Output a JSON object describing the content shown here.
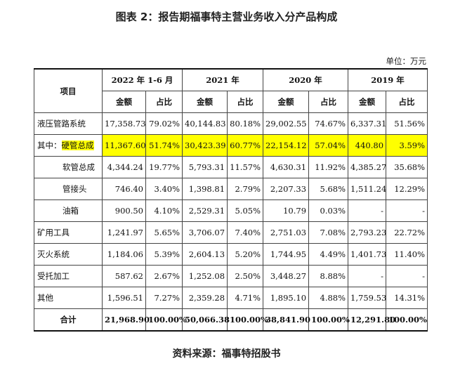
{
  "title": "图表 2：报告期福事特主营业务收入分产品构成",
  "unit": "单位：万元",
  "source": "资料来源：福事特招股书",
  "colors": {
    "highlight": "#ffff00"
  },
  "table": {
    "header_item": "项目",
    "years": [
      "2022 年 1-6 月",
      "2021 年",
      "2020 年",
      "2019 年"
    ],
    "subheaders": [
      "金额",
      "占比",
      "金额",
      "占比",
      "金额",
      "占比",
      "金额",
      "占比"
    ],
    "rows": [
      {
        "label": "液压管路系统",
        "cells": [
          "17,358.73",
          "79.02%",
          "40,144.83",
          "80.18%",
          "29,002.55",
          "74.67%",
          "6,337.31",
          "51.56%"
        ]
      },
      {
        "prefix": "其中：",
        "label": "硬管总成",
        "cells": [
          "11,367.60",
          "51.74%",
          "30,423.39",
          "60.77%",
          "22,154.12",
          "57.04%",
          "440.80",
          "3.59%"
        ]
      },
      {
        "label": "软管总成",
        "cells": [
          "4,344.24",
          "19.77%",
          "5,793.31",
          "11.57%",
          "4,630.31",
          "11.92%",
          "4,385.27",
          "35.68%"
        ]
      },
      {
        "label": "管接头",
        "cells": [
          "746.40",
          "3.40%",
          "1,398.81",
          "2.79%",
          "2,207.33",
          "5.68%",
          "1,511.24",
          "12.29%"
        ]
      },
      {
        "label": "油箱",
        "cells": [
          "900.50",
          "4.10%",
          "2,529.31",
          "5.05%",
          "10.79",
          "0.03%",
          "-",
          "-"
        ]
      },
      {
        "label": "矿用工具",
        "cells": [
          "1,241.97",
          "5.65%",
          "3,706.07",
          "7.40%",
          "2,751.03",
          "7.08%",
          "2,793.23",
          "22.72%"
        ]
      },
      {
        "label": "灭火系统",
        "cells": [
          "1,184.06",
          "5.39%",
          "2,604.13",
          "5.20%",
          "1,744.95",
          "4.49%",
          "1,401.73",
          "11.40%"
        ]
      },
      {
        "label": "受托加工",
        "cells": [
          "587.62",
          "2.67%",
          "1,252.08",
          "2.50%",
          "3,448.27",
          "8.88%",
          "-",
          "-"
        ]
      },
      {
        "label": "其他",
        "cells": [
          "1,596.51",
          "7.27%",
          "2,359.28",
          "4.71%",
          "1,895.10",
          "4.88%",
          "1,759.53",
          "14.31%"
        ]
      },
      {
        "label": "合计",
        "cells": [
          "21,968.90",
          "100.00%",
          "50,066.38",
          "100.00%",
          "38,841.90",
          "100.00%",
          "12,291.80",
          "100.00%"
        ]
      }
    ]
  }
}
